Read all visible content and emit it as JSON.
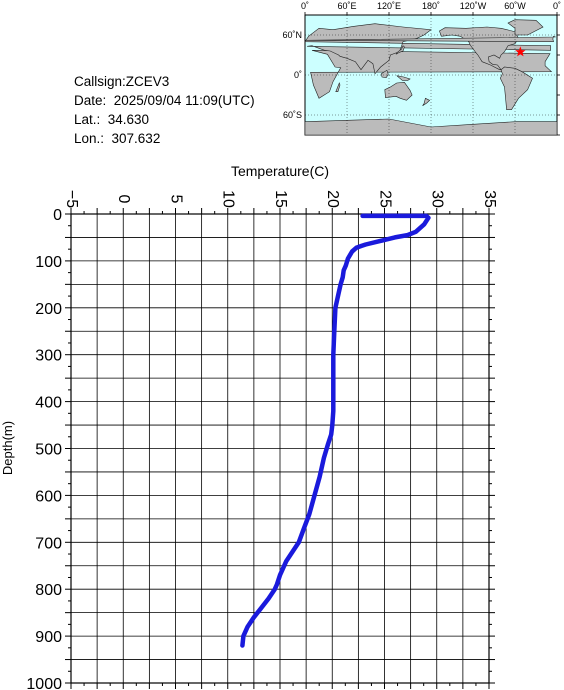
{
  "info": {
    "callsign": "Callsign:ZCEV3",
    "date": "Date:  2025/09/04 11:09(UTC)",
    "lat": "Lat.:  34.630",
    "lon": "Lon.:  307.632"
  },
  "map": {
    "lon_ticks": [
      "0˚",
      "60˚E",
      "120˚E",
      "180˚",
      "120˚W",
      "60˚W",
      "0˚"
    ],
    "lat_ticks": [
      "60˚N",
      "0˚",
      "60˚S"
    ],
    "marker": {
      "lat": 34.63,
      "lon": 307.632,
      "color": "#ff0000"
    },
    "ocean_color": "#ccffff",
    "land_color": "#bbbbbb"
  },
  "chart_data": {
    "type": "line",
    "title": "",
    "xlabel": "Temperature(C)",
    "ylabel": "Depth(m)",
    "xlim": [
      -5,
      35
    ],
    "ylim": [
      0,
      1000
    ],
    "y_inverted": true,
    "grid": true,
    "x_ticks": [
      -5,
      0,
      5,
      10,
      15,
      20,
      25,
      30,
      35
    ],
    "y_ticks": [
      0,
      100,
      200,
      300,
      400,
      500,
      600,
      700,
      800,
      900,
      1000
    ],
    "series": [
      {
        "color": "#1a1adc",
        "temperature": [
          22.9,
          29.0,
          29.2,
          28.8,
          28.0,
          27.2,
          26.0,
          24.5,
          23.2,
          22.8,
          22.3,
          21.9,
          21.5,
          21.3,
          21.1,
          21.0,
          20.8,
          20.6,
          20.3,
          20.2,
          20.1,
          20.1,
          20.1,
          20.1,
          20.0,
          19.9,
          19.6,
          19.2,
          18.8,
          18.3,
          17.8,
          17.3,
          16.8,
          16.2,
          15.6,
          15.0,
          14.7,
          14.5,
          13.9,
          13.2,
          12.5,
          11.9,
          11.5,
          11.4
        ],
        "depth": [
          4,
          4,
          8,
          22,
          38,
          45,
          50,
          58,
          65,
          68,
          72,
          80,
          95,
          110,
          120,
          135,
          150,
          170,
          200,
          250,
          300,
          350,
          400,
          420,
          450,
          470,
          490,
          520,
          560,
          600,
          640,
          670,
          700,
          720,
          740,
          770,
          790,
          800,
          820,
          840,
          860,
          880,
          900,
          920
        ]
      }
    ]
  }
}
